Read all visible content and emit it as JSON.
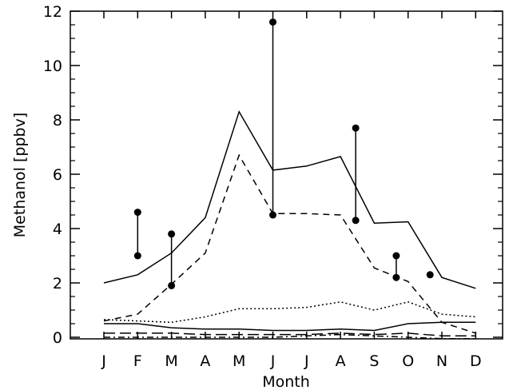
{
  "chart_data": {
    "type": "line",
    "title": "",
    "xlabel": "Month",
    "ylabel": "Methanol [ppbv]",
    "categories": [
      "J",
      "F",
      "M",
      "A",
      "M",
      "J",
      "J",
      "A",
      "S",
      "O",
      "N",
      "D"
    ],
    "ylim": [
      0,
      12
    ],
    "yticks": [
      0,
      2,
      4,
      6,
      8,
      10,
      12
    ],
    "grid": false,
    "series": [
      {
        "style": "solid",
        "color": "#000000",
        "values": [
          2.0,
          2.3,
          3.1,
          4.4,
          8.3,
          6.15,
          6.3,
          6.65,
          4.2,
          4.25,
          2.2,
          1.8
        ]
      },
      {
        "style": "dashed",
        "color": "#000000",
        "values": [
          0.6,
          0.85,
          1.95,
          3.1,
          6.7,
          4.55,
          4.55,
          4.5,
          2.55,
          2.05,
          0.55,
          0.15
        ]
      },
      {
        "style": "dotted",
        "color": "#000000",
        "values": [
          0.65,
          0.6,
          0.55,
          0.75,
          1.05,
          1.05,
          1.1,
          1.3,
          1.0,
          1.3,
          0.85,
          0.75
        ]
      },
      {
        "style": "solid",
        "color": "#000000",
        "values": [
          0.5,
          0.5,
          0.35,
          0.3,
          0.3,
          0.25,
          0.25,
          0.3,
          0.25,
          0.5,
          0.55,
          0.55
        ]
      },
      {
        "style": "longdash",
        "color": "#000000",
        "values": [
          0.15,
          0.15,
          0.15,
          0.1,
          0.1,
          0.1,
          0.1,
          0.15,
          0.1,
          0.15,
          0.05,
          0.05
        ]
      },
      {
        "style": "dashdot",
        "color": "#000000",
        "values": [
          0.0,
          0.0,
          0.0,
          0.0,
          0.0,
          0.0,
          0.05,
          0.1,
          0.05,
          0.0,
          -0.05,
          -0.05
        ]
      }
    ],
    "observations": [
      {
        "x": 1.0,
        "low": 3.0,
        "high": 4.6
      },
      {
        "x": 2.0,
        "low": 1.9,
        "high": 3.8
      },
      {
        "x": 5.0,
        "low": 4.5,
        "high": 11.6
      },
      {
        "x": 7.45,
        "low": 4.3,
        "high": 7.7
      },
      {
        "x": 8.65,
        "low": 2.2,
        "high": 3.0
      },
      {
        "x": 9.65,
        "low": 2.3,
        "high": 2.3
      }
    ]
  }
}
